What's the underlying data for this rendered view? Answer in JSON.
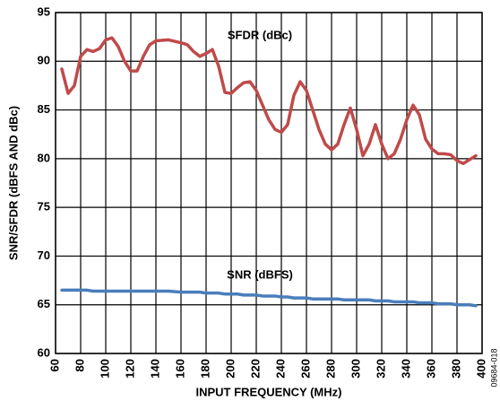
{
  "chart_data": {
    "type": "line",
    "xlabel": "INPUT FREQUENCY (MHz)",
    "ylabel": "SNR/SFDR (dBFS AND dBc)",
    "annotations": [
      "SFDR (dBc)",
      "SNR (dBFS)",
      "09684-018"
    ],
    "x": [
      65,
      70,
      75,
      80,
      85,
      90,
      95,
      100,
      105,
      110,
      115,
      120,
      125,
      130,
      135,
      140,
      150,
      160,
      165,
      170,
      175,
      180,
      185,
      190,
      195,
      200,
      205,
      210,
      215,
      220,
      225,
      230,
      235,
      240,
      245,
      250,
      255,
      260,
      265,
      270,
      275,
      280,
      285,
      290,
      295,
      300,
      305,
      310,
      315,
      320,
      325,
      330,
      335,
      340,
      345,
      350,
      355,
      360,
      365,
      370,
      375,
      380,
      385,
      390,
      395
    ],
    "series": [
      {
        "name": "SFDR (dBc)",
        "color": "#c04a4a",
        "values": [
          89.2,
          86.7,
          87.5,
          90.5,
          91.2,
          91.0,
          91.3,
          92.2,
          92.4,
          91.5,
          90.0,
          89.0,
          89.0,
          90.5,
          91.7,
          92.1,
          92.2,
          91.9,
          91.7,
          91.0,
          90.5,
          90.8,
          91.2,
          89.5,
          86.8,
          86.7,
          87.3,
          87.8,
          87.9,
          87.0,
          85.5,
          84.0,
          83.0,
          82.7,
          83.5,
          86.5,
          87.9,
          87.0,
          85.0,
          83.0,
          81.5,
          80.9,
          81.5,
          83.5,
          85.2,
          83.0,
          80.3,
          81.5,
          83.5,
          81.5,
          80.0,
          80.5,
          82.0,
          84.0,
          85.5,
          84.5,
          82.0,
          81.0,
          80.5,
          80.5,
          80.4,
          79.8,
          79.5,
          79.9,
          80.3
        ]
      },
      {
        "name": "SNR (dBFS)",
        "color": "#4a7ebb",
        "values": [
          66.5,
          66.5,
          66.5,
          66.5,
          66.5,
          66.4,
          66.4,
          66.4,
          66.4,
          66.4,
          66.4,
          66.4,
          66.4,
          66.4,
          66.4,
          66.4,
          66.4,
          66.3,
          66.3,
          66.3,
          66.3,
          66.2,
          66.2,
          66.2,
          66.1,
          66.1,
          66.1,
          66.0,
          66.0,
          66.0,
          65.9,
          65.9,
          65.9,
          65.8,
          65.8,
          65.7,
          65.7,
          65.7,
          65.6,
          65.6,
          65.6,
          65.6,
          65.6,
          65.5,
          65.5,
          65.5,
          65.5,
          65.5,
          65.4,
          65.4,
          65.4,
          65.3,
          65.3,
          65.3,
          65.3,
          65.2,
          65.2,
          65.2,
          65.1,
          65.1,
          65.1,
          65.0,
          65.0,
          65.0,
          64.9
        ]
      }
    ],
    "xlim": [
      60,
      400
    ],
    "xticks": [
      60,
      80,
      100,
      120,
      140,
      160,
      180,
      200,
      220,
      240,
      260,
      280,
      300,
      320,
      340,
      360,
      380,
      400
    ],
    "ylim": [
      60,
      95
    ],
    "yticks": [
      60,
      65,
      70,
      75,
      80,
      85,
      90,
      95
    ],
    "grid": true
  }
}
